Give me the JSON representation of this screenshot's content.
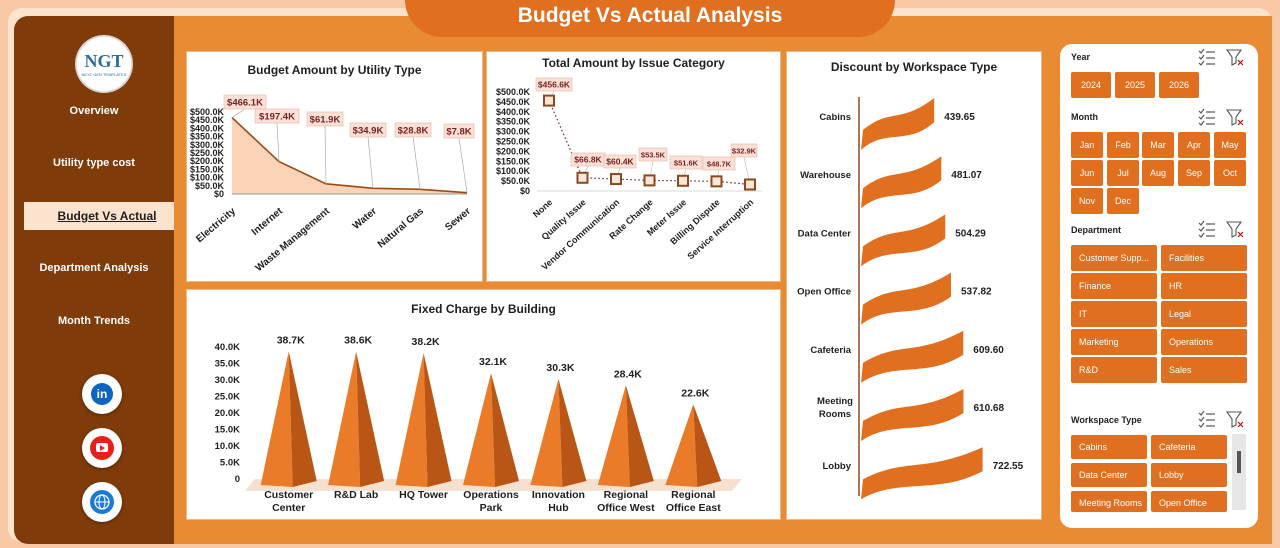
{
  "app": {
    "title": "Budget Vs Actual Analysis",
    "logo": "NGT",
    "logo_sub": "NEXT GEN TEMPLATES"
  },
  "nav": [
    "Overview",
    "Utility type cost",
    "Budget Vs Actual",
    "Department Analysis",
    "Month Trends"
  ],
  "social": [
    "linkedin-icon",
    "youtube-icon",
    "globe-icon"
  ],
  "charts": [
    {
      "title": "Budget Amount by Utility Type",
      "chart_data": {
        "type": "area",
        "categories": [
          "Electricity",
          "Internet",
          "Waste Management",
          "Water",
          "Natural Gas",
          "Sewer"
        ],
        "values": [
          466.1,
          197.4,
          61.9,
          34.9,
          28.8,
          7.8
        ],
        "data_labels": [
          "$466.1K",
          "$197.4K",
          "$61.9K",
          "$34.9K",
          "$28.8K",
          "$7.8K"
        ],
        "y_ticks": [
          "$500.0K",
          "$450.0K",
          "$400.0K",
          "$350.0K",
          "$300.0K",
          "$250.0K",
          "$200.0K",
          "$150.0K",
          "$100.0K",
          "$50.0K",
          "$0"
        ],
        "ylim": [
          0,
          500
        ]
      }
    },
    {
      "title": "Total Amount by Issue Category",
      "chart_data": {
        "type": "line",
        "categories": [
          "None",
          "Quality Issue",
          "Vendor Communication",
          "Rate Change",
          "Meter Issue",
          "Billing Dispute",
          "Service Interruption"
        ],
        "values": [
          456.6,
          66.8,
          60.4,
          53.5,
          51.6,
          48.7,
          32.9
        ],
        "data_labels": [
          "$456.6K",
          "$66.8K",
          "$60.4K",
          "$53.5K",
          "$51.6K",
          "$48.7K",
          "$32.9K"
        ],
        "y_ticks": [
          "$500.0K",
          "$450.0K",
          "$400.0K",
          "$350.0K",
          "$300.0K",
          "$250.0K",
          "$200.0K",
          "$150.0K",
          "$100.0K",
          "$50.0K",
          "$0"
        ],
        "ylim": [
          0,
          500
        ]
      }
    },
    {
      "title": "Fixed Charge by Building",
      "chart_data": {
        "type": "bar",
        "categories": [
          "Customer Center",
          "R&D Lab",
          "HQ Tower",
          "Operations Park",
          "Innovation Hub",
          "Regional Office West",
          "Regional Office East"
        ],
        "values": [
          38.7,
          38.6,
          38.2,
          32.1,
          30.3,
          28.4,
          22.6
        ],
        "data_labels": [
          "38.7K",
          "38.6K",
          "38.2K",
          "32.1K",
          "30.3K",
          "28.4K",
          "22.6K"
        ],
        "y_ticks": [
          "40.0K",
          "35.0K",
          "30.0K",
          "25.0K",
          "20.0K",
          "15.0K",
          "10.0K",
          "5.0K",
          "0"
        ],
        "ylim": [
          0,
          40
        ]
      }
    },
    {
      "title": "Discount by Workspace Type",
      "chart_data": {
        "type": "bar",
        "categories": [
          "Cabins",
          "Warehouse",
          "Data Center",
          "Open Office",
          "Cafeteria",
          "Meeting Rooms",
          "Lobby"
        ],
        "values": [
          439.65,
          481.07,
          504.29,
          537.82,
          609.6,
          610.68,
          722.55
        ],
        "data_labels": [
          "439.65",
          "481.07",
          "504.29",
          "537.82",
          "609.60",
          "610.68",
          "722.55"
        ]
      }
    }
  ],
  "slicers": {
    "year": {
      "title": "Year",
      "items": [
        "2024",
        "2025",
        "2026"
      ]
    },
    "month": {
      "title": "Month",
      "items": [
        "Jan",
        "Feb",
        "Mar",
        "Apr",
        "May",
        "Jun",
        "Jul",
        "Aug",
        "Sep",
        "Oct",
        "Nov",
        "Dec"
      ]
    },
    "department": {
      "title": "Department",
      "items": [
        "Customer Supp...",
        "Facilities",
        "Finance",
        "HR",
        "IT",
        "Legal",
        "Marketing",
        "Operations",
        "R&D",
        "Sales"
      ]
    },
    "workspace": {
      "title": "Workspace Type",
      "items": [
        "Cabins",
        "Cafeteria",
        "Data Center",
        "Lobby",
        "Meeting Rooms",
        "Open Office"
      ]
    }
  },
  "colors": {
    "accent": "#e07020",
    "dark": "#7f3b0a",
    "panel": "#fde3cd",
    "label_box": "#fbe1d5",
    "label_text": "#7a1f1f"
  }
}
